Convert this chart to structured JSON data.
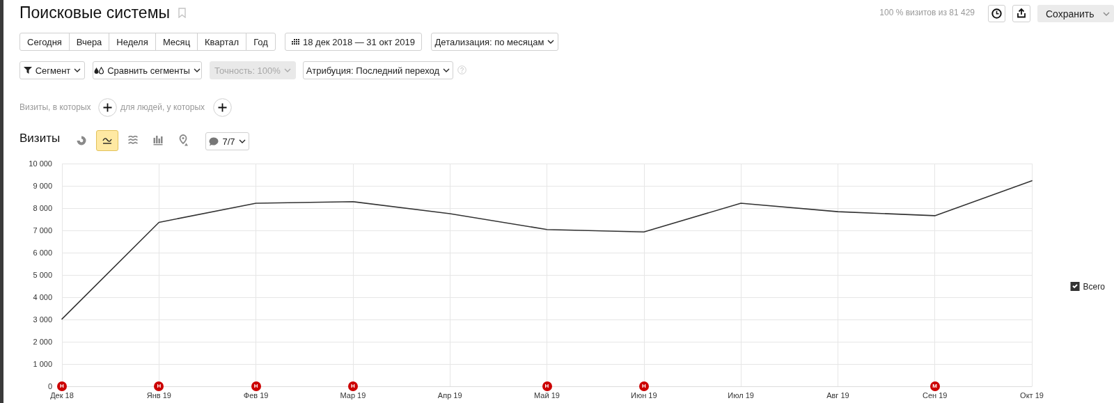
{
  "chart_data": {
    "type": "line",
    "title": "Поисковые системы",
    "subtitle": "Визиты",
    "categories": [
      "Дек 18",
      "Янв 19",
      "Фев 19",
      "Мар 19",
      "Апр 19",
      "Май 19",
      "Июн 19",
      "Июл 19",
      "Авг 19",
      "Сен 19",
      "Окт 19"
    ],
    "series": [
      {
        "name": "Всего",
        "color": "#333333",
        "values": [
          3020,
          7360,
          8220,
          8290,
          7750,
          7040,
          6930,
          8220,
          7840,
          7660,
          9230
        ]
      }
    ],
    "ylim": [
      0,
      10000
    ],
    "yticks": [
      0,
      {
        "value": 1000,
        "label": "1 000"
      },
      {
        "value": 2000,
        "label": "2 000"
      },
      {
        "value": 3000,
        "label": "3 000"
      },
      {
        "value": 4000,
        "label": "4 000"
      },
      {
        "value": 5000,
        "label": "5 000"
      },
      {
        "value": 6000,
        "label": "6 000"
      },
      {
        "value": 7000,
        "label": "7 000"
      },
      {
        "value": 8000,
        "label": "8 000"
      },
      {
        "value": 9000,
        "label": "9 000"
      },
      {
        "value": 10000,
        "label": "10 000"
      }
    ],
    "grid": true,
    "legend": "right",
    "marker": "none",
    "line_style": "solid",
    "annotations": [
      "100 % визитов из 81 429",
      "Сохранить",
      "Сегодня",
      "Вчера",
      "Неделя",
      "Месяц",
      "Квартал",
      "Год",
      "18 дек 2018 — 31 окт 2019",
      "Детализация: по месяцам",
      "Сегмент",
      "Сравнить сегменты",
      "Точность: 100%",
      "Атрибуция: Последний переход",
      "Визиты, в которых",
      "для людей, у которых",
      "7/7",
      {
        "text": "Н",
        "x": "Дек 18"
      },
      {
        "text": "Н",
        "x": "Янв 19"
      },
      {
        "text": "Н",
        "x": "Фев 19"
      },
      {
        "text": "Н",
        "x": "Мар 19"
      },
      {
        "text": "Н",
        "x": "Май 19"
      },
      {
        "text": "Н",
        "x": "Июн 19"
      },
      {
        "text": "М",
        "x": "Сен 19"
      }
    ]
  }
}
